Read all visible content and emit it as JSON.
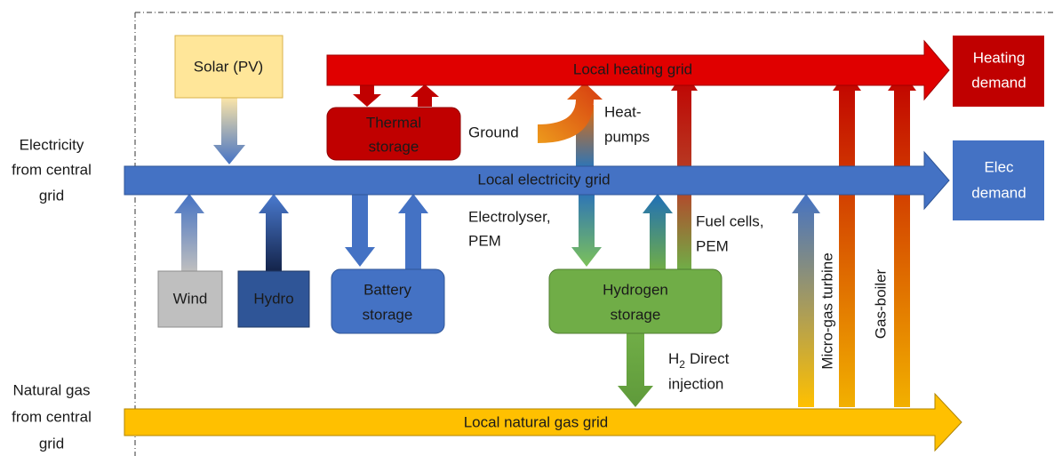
{
  "solar": "Solar (PV)",
  "local_heating_grid": "Local heating grid",
  "heating_demand": [
    "Heating",
    "demand"
  ],
  "thermal_storage": [
    "Thermal",
    "storage"
  ],
  "ground": "Ground",
  "heat_pumps": [
    "Heat-",
    "pumps"
  ],
  "electricity_source": [
    "Electricity",
    "from central",
    "grid"
  ],
  "local_electricity_grid": "Local electricity grid",
  "elec_demand": [
    "Elec",
    "demand"
  ],
  "electrolyser": [
    "Electrolyser,",
    "PEM"
  ],
  "fuel_cells": [
    "Fuel cells,",
    "PEM"
  ],
  "wind": "Wind",
  "hydro": "Hydro",
  "battery_storage": [
    "Battery",
    "storage"
  ],
  "hydrogen_storage": [
    "Hydrogen",
    "storage"
  ],
  "h2_direct_injection": {
    "element": "H",
    "subscript": "2",
    "line1_rest": "Direct",
    "line2": "injection"
  },
  "micro_gas_turbine": "Micro-gas turbine",
  "gas_boiler": "Gas-boiler",
  "natural_gas_source": [
    "Natural gas",
    "from central",
    "grid"
  ],
  "local_natural_gas_grid": "Local natural gas grid"
}
